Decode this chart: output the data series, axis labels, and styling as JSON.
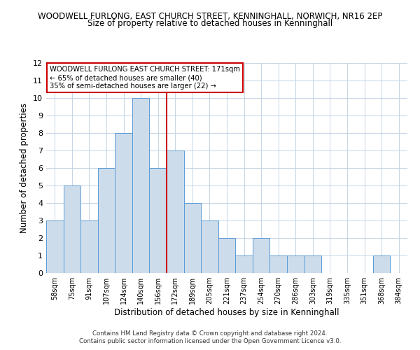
{
  "title_line1": "WOODWELL FURLONG, EAST CHURCH STREET, KENNINGHALL, NORWICH, NR16 2EP",
  "title_line2": "Size of property relative to detached houses in Kenninghall",
  "xlabel": "Distribution of detached houses by size in Kenninghall",
  "ylabel": "Number of detached properties",
  "bar_labels": [
    "58sqm",
    "75sqm",
    "91sqm",
    "107sqm",
    "124sqm",
    "140sqm",
    "156sqm",
    "172sqm",
    "189sqm",
    "205sqm",
    "221sqm",
    "237sqm",
    "254sqm",
    "270sqm",
    "286sqm",
    "303sqm",
    "319sqm",
    "335sqm",
    "351sqm",
    "368sqm",
    "384sqm"
  ],
  "bar_values": [
    3,
    5,
    3,
    6,
    8,
    10,
    6,
    7,
    4,
    3,
    2,
    1,
    2,
    1,
    1,
    1,
    0,
    0,
    0,
    1,
    0
  ],
  "bar_color": "#cddceb",
  "bar_edge_color": "#5b9bd5",
  "ref_line_index": 7,
  "ref_line_color": "#cc0000",
  "ylim": [
    0,
    12
  ],
  "yticks": [
    0,
    1,
    2,
    3,
    4,
    5,
    6,
    7,
    8,
    9,
    10,
    11,
    12
  ],
  "annotation_title": "WOODWELL FURLONG EAST CHURCH STREET: 171sqm",
  "annotation_line2": "← 65% of detached houses are smaller (40)",
  "annotation_line3": "35% of semi-detached houses are larger (22) →",
  "footer_line1": "Contains HM Land Registry data © Crown copyright and database right 2024.",
  "footer_line2": "Contains public sector information licensed under the Open Government Licence v3.0.",
  "background_color": "#ffffff",
  "grid_color": "#c5d5e5"
}
